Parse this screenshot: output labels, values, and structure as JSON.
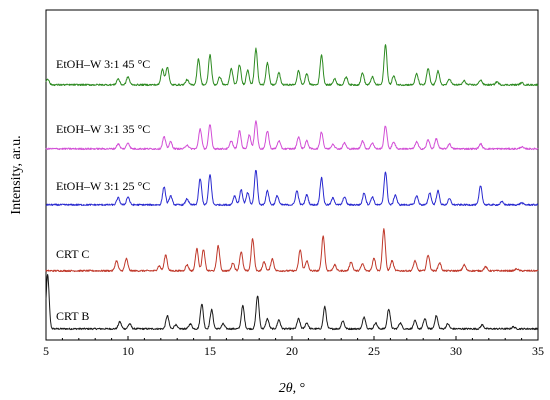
{
  "chart_data": {
    "type": "line",
    "title": "",
    "xlabel_italic": "2θ",
    "xlabel_suffix": ", °",
    "ylabel": "Intensity, ar.u.",
    "xlim": [
      5,
      35
    ],
    "x_ticks": [
      "5",
      "10",
      "15",
      "20",
      "25",
      "30",
      "35"
    ],
    "y_ticks": false,
    "grid": false,
    "legend": "none",
    "series": [
      {
        "name": "CRT B",
        "color": "#1a1a1a",
        "baseline": 0,
        "peaks": [
          [
            5.1,
            54
          ],
          [
            9.5,
            7
          ],
          [
            10.1,
            5
          ],
          [
            12.4,
            13
          ],
          [
            12.9,
            4
          ],
          [
            13.8,
            5
          ],
          [
            14.5,
            25
          ],
          [
            15.1,
            19
          ],
          [
            15.8,
            5
          ],
          [
            17.0,
            23
          ],
          [
            17.9,
            33
          ],
          [
            18.5,
            10
          ],
          [
            19.2,
            9
          ],
          [
            20.4,
            10
          ],
          [
            20.9,
            6
          ],
          [
            22.0,
            22
          ],
          [
            23.1,
            8
          ],
          [
            24.4,
            12
          ],
          [
            25.1,
            6
          ],
          [
            25.9,
            20
          ],
          [
            26.6,
            6
          ],
          [
            27.5,
            8
          ],
          [
            28.1,
            10
          ],
          [
            28.8,
            13
          ],
          [
            29.5,
            5
          ],
          [
            31.6,
            4
          ],
          [
            33.5,
            2
          ]
        ]
      },
      {
        "name": "CRT C",
        "color": "#c0392b",
        "baseline": 0,
        "peaks": [
          [
            9.3,
            10
          ],
          [
            9.9,
            12
          ],
          [
            11.9,
            5
          ],
          [
            12.3,
            16
          ],
          [
            13.6,
            6
          ],
          [
            14.2,
            22
          ],
          [
            14.6,
            21
          ],
          [
            15.5,
            25
          ],
          [
            16.4,
            8
          ],
          [
            16.9,
            19
          ],
          [
            17.6,
            32
          ],
          [
            18.3,
            9
          ],
          [
            18.8,
            12
          ],
          [
            20.5,
            21
          ],
          [
            20.9,
            10
          ],
          [
            21.9,
            35
          ],
          [
            22.6,
            6
          ],
          [
            23.6,
            9
          ],
          [
            24.3,
            7
          ],
          [
            25.0,
            13
          ],
          [
            25.6,
            42
          ],
          [
            26.1,
            10
          ],
          [
            27.5,
            10
          ],
          [
            28.3,
            16
          ],
          [
            29.0,
            8
          ],
          [
            30.5,
            6
          ],
          [
            31.8,
            4
          ],
          [
            33.7,
            2
          ]
        ]
      },
      {
        "name": "EtOH–W 3:1 25 °C",
        "color": "#2a2ad0",
        "baseline": 0,
        "peaks": [
          [
            9.4,
            7
          ],
          [
            10.0,
            8
          ],
          [
            12.2,
            18
          ],
          [
            12.6,
            9
          ],
          [
            13.6,
            6
          ],
          [
            14.4,
            26
          ],
          [
            15.0,
            30
          ],
          [
            16.5,
            9
          ],
          [
            16.9,
            15
          ],
          [
            17.3,
            12
          ],
          [
            17.8,
            35
          ],
          [
            18.5,
            14
          ],
          [
            19.1,
            9
          ],
          [
            20.3,
            14
          ],
          [
            20.9,
            10
          ],
          [
            21.8,
            27
          ],
          [
            22.5,
            7
          ],
          [
            23.2,
            8
          ],
          [
            24.4,
            12
          ],
          [
            24.9,
            8
          ],
          [
            25.7,
            33
          ],
          [
            26.3,
            10
          ],
          [
            27.6,
            9
          ],
          [
            28.4,
            12
          ],
          [
            28.9,
            14
          ],
          [
            29.6,
            6
          ],
          [
            31.5,
            19
          ],
          [
            32.8,
            3
          ],
          [
            34.0,
            2
          ]
        ]
      },
      {
        "name": "EtOH–W 3:1 35 °C",
        "color": "#d24fd6",
        "baseline": 0,
        "peaks": [
          [
            9.4,
            5
          ],
          [
            10.0,
            6
          ],
          [
            12.2,
            12
          ],
          [
            12.6,
            7
          ],
          [
            13.6,
            4
          ],
          [
            14.4,
            20
          ],
          [
            15.0,
            24
          ],
          [
            16.3,
            8
          ],
          [
            16.8,
            18
          ],
          [
            17.4,
            14
          ],
          [
            17.8,
            28
          ],
          [
            18.5,
            18
          ],
          [
            19.2,
            8
          ],
          [
            20.4,
            12
          ],
          [
            20.9,
            8
          ],
          [
            21.8,
            17
          ],
          [
            22.5,
            5
          ],
          [
            23.2,
            6
          ],
          [
            24.3,
            8
          ],
          [
            24.9,
            6
          ],
          [
            25.7,
            23
          ],
          [
            26.2,
            7
          ],
          [
            27.6,
            7
          ],
          [
            28.3,
            9
          ],
          [
            28.8,
            10
          ],
          [
            29.6,
            5
          ],
          [
            31.5,
            5
          ],
          [
            34.0,
            2
          ]
        ]
      },
      {
        "name": "EtOH–W 3:1 45 °C",
        "color": "#2e8b22",
        "baseline": 0,
        "peaks": [
          [
            5.1,
            6
          ],
          [
            9.4,
            6
          ],
          [
            10.0,
            8
          ],
          [
            12.1,
            16
          ],
          [
            12.4,
            18
          ],
          [
            13.6,
            5
          ],
          [
            14.3,
            26
          ],
          [
            15.0,
            30
          ],
          [
            15.6,
            8
          ],
          [
            16.3,
            16
          ],
          [
            16.8,
            20
          ],
          [
            17.3,
            15
          ],
          [
            17.8,
            36
          ],
          [
            18.5,
            22
          ],
          [
            19.2,
            12
          ],
          [
            20.4,
            14
          ],
          [
            20.9,
            11
          ],
          [
            21.8,
            30
          ],
          [
            22.6,
            6
          ],
          [
            23.3,
            8
          ],
          [
            24.3,
            12
          ],
          [
            24.9,
            8
          ],
          [
            25.7,
            40
          ],
          [
            26.2,
            9
          ],
          [
            27.6,
            11
          ],
          [
            28.3,
            16
          ],
          [
            28.9,
            14
          ],
          [
            29.6,
            6
          ],
          [
            30.5,
            4
          ],
          [
            31.5,
            5
          ],
          [
            32.5,
            3
          ],
          [
            34.0,
            2
          ]
        ]
      }
    ]
  }
}
